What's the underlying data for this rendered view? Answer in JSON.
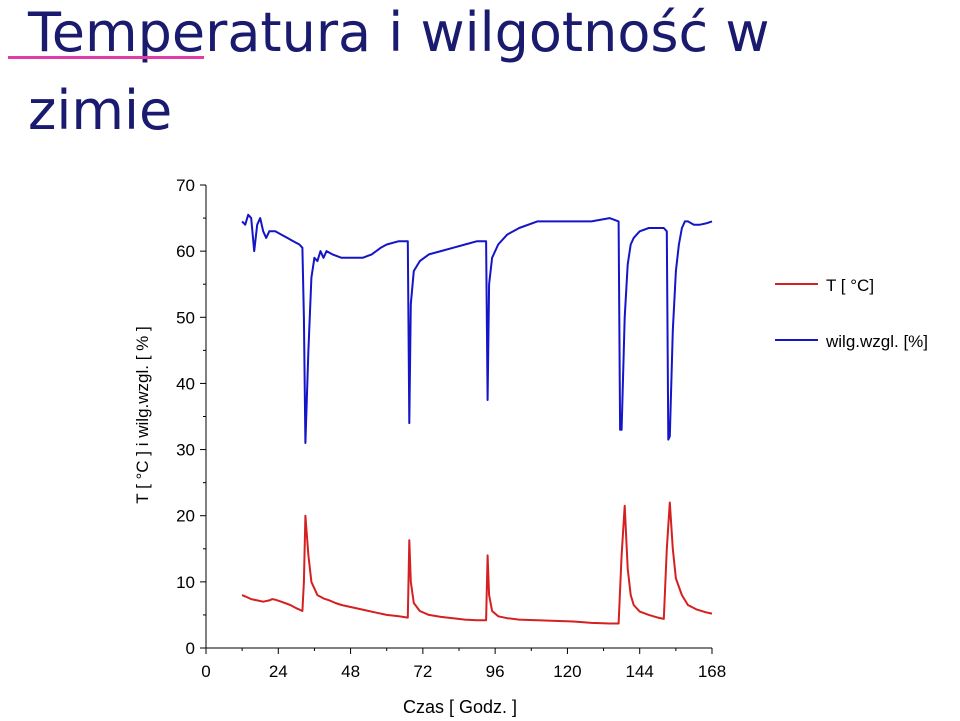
{
  "slide": {
    "title": "Temperatura i wilgotność w zimie"
  },
  "chart_data": {
    "type": "line",
    "title": "",
    "xlabel": "Czas [ Godz. ]",
    "ylabel": "T [ °C ] i wilg.wzgl. [ % ]",
    "xlim": [
      0,
      168
    ],
    "ylim": [
      0,
      70
    ],
    "xticks": [
      0,
      24,
      48,
      72,
      96,
      120,
      144,
      168
    ],
    "yticks": [
      0,
      10,
      20,
      30,
      40,
      50,
      60,
      70
    ],
    "grid": false,
    "legend_position": "top-right",
    "series": [
      {
        "name": "T [ °C]",
        "color": "#d42020",
        "x": [
          12,
          13,
          15,
          17,
          19,
          21,
          22,
          23,
          25,
          28,
          30,
          31,
          32,
          32.5,
          33,
          34,
          35,
          37,
          39,
          41,
          43,
          45,
          48,
          52,
          56,
          60,
          64,
          67,
          67.5,
          68,
          69,
          71,
          74,
          78,
          82,
          86,
          90,
          93,
          93.5,
          94,
          95,
          97,
          100,
          104,
          110,
          116,
          122,
          128,
          134,
          137,
          138,
          139,
          140,
          141,
          142,
          144,
          147,
          150,
          152,
          153,
          154,
          155,
          156,
          158,
          160,
          163,
          166,
          168
        ],
        "y": [
          8,
          7.8,
          7.4,
          7.2,
          7.0,
          7.2,
          7.4,
          7.3,
          7.0,
          6.5,
          6.0,
          5.8,
          5.6,
          10,
          20,
          14,
          10,
          8,
          7.5,
          7.2,
          6.8,
          6.5,
          6.2,
          5.8,
          5.4,
          5.0,
          4.8,
          4.6,
          16.3,
          10,
          6.8,
          5.6,
          5.0,
          4.7,
          4.5,
          4.3,
          4.2,
          4.2,
          14,
          8,
          5.6,
          4.8,
          4.5,
          4.3,
          4.2,
          4.1,
          4.0,
          3.8,
          3.7,
          3.7,
          14,
          21.5,
          12,
          8,
          6.5,
          5.5,
          5.0,
          4.6,
          4.4,
          15,
          22,
          15,
          10.5,
          8,
          6.5,
          5.8,
          5.4,
          5.2
        ]
      },
      {
        "name": "wilg.wzgl. [%]",
        "color": "#1414c8",
        "x": [
          12,
          13,
          14,
          15,
          16,
          17,
          18,
          19,
          20,
          21,
          23,
          25,
          27,
          29,
          31,
          32,
          32.5,
          33,
          34,
          35,
          36,
          37,
          38,
          39,
          40,
          42,
          45,
          48,
          52,
          55,
          58,
          60,
          64,
          67,
          67.5,
          68,
          69,
          71,
          74,
          78,
          82,
          86,
          90,
          93,
          93.5,
          94,
          95,
          97,
          100,
          104,
          110,
          116,
          122,
          128,
          134,
          137,
          137.5,
          138,
          139,
          140,
          141,
          142,
          143,
          144,
          147,
          150,
          152,
          153,
          153.5,
          154,
          155,
          156,
          157,
          158,
          159,
          160,
          162,
          164,
          166,
          168
        ],
        "y": [
          64.5,
          64,
          65.5,
          65,
          60,
          64,
          65,
          63,
          62,
          63,
          63,
          62.5,
          62,
          61.5,
          61,
          60.5,
          50,
          31,
          45,
          56,
          59,
          58.5,
          60,
          59,
          60,
          59.5,
          59,
          59,
          59,
          59.5,
          60.5,
          61,
          61.5,
          61.5,
          34,
          52,
          57,
          58.5,
          59.5,
          60,
          60.5,
          61,
          61.5,
          61.5,
          37.5,
          55,
          59,
          61,
          62.5,
          63.5,
          64.5,
          64.5,
          64.5,
          64.5,
          65,
          64.5,
          33,
          33,
          50,
          58,
          61,
          62,
          62.5,
          63,
          63.5,
          63.5,
          63.5,
          63,
          31.5,
          32,
          48,
          57,
          61,
          63.5,
          64.5,
          64.5,
          64,
          64,
          64.2,
          64.5
        ]
      }
    ]
  }
}
